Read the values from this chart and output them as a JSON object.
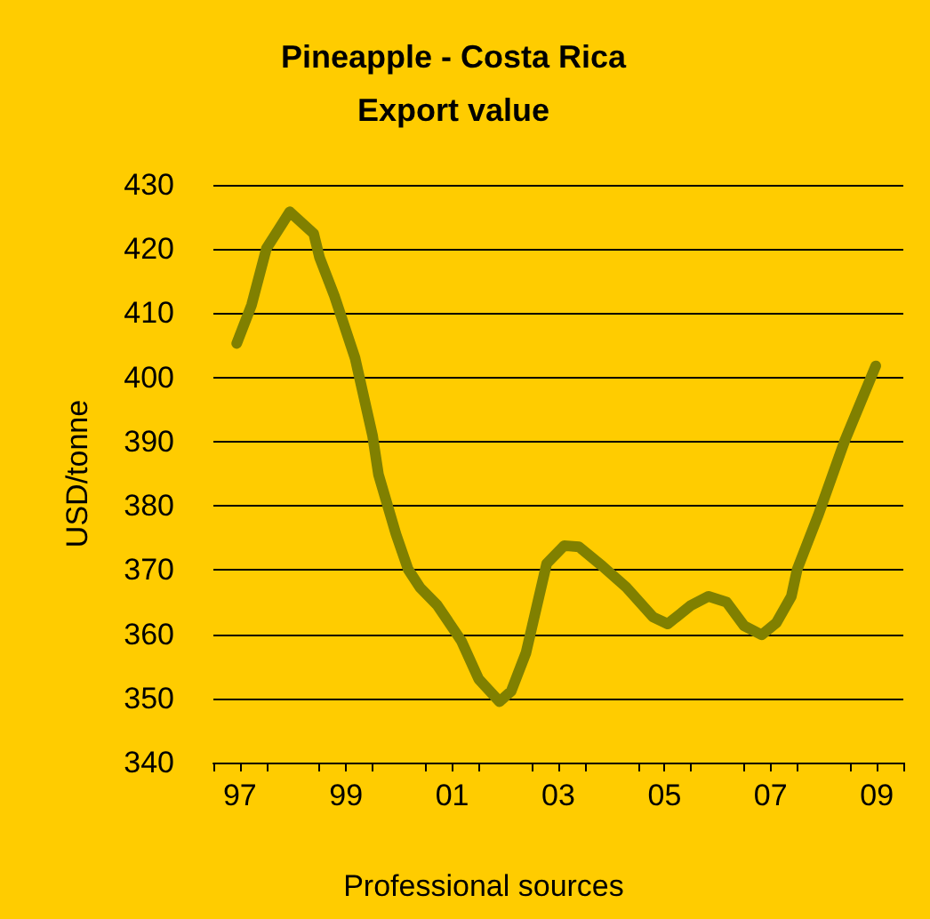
{
  "chart_data": {
    "type": "line",
    "title": "Pineapple - Costa Rica\nExport value",
    "ylabel": "USD/tonne",
    "annotations": [
      "Professional sources"
    ],
    "x": [
      1996.94,
      1997.22,
      1997.5,
      1997.94,
      1998.39,
      1998.5,
      1998.78,
      1999.17,
      1999.5,
      1999.61,
      1999.94,
      2000.17,
      2000.39,
      2000.72,
      2001.17,
      2001.5,
      2001.89,
      2002.11,
      2002.39,
      2002.78,
      2003.11,
      2003.39,
      2003.83,
      2004.28,
      2004.78,
      2005.06,
      2005.5,
      2005.83,
      2006.17,
      2006.5,
      2006.83,
      2007.11,
      2007.39,
      2007.5,
      2007.89,
      2008.39,
      2008.98
    ],
    "series": [
      {
        "color": "#808000",
        "values": [
          405.3,
          411.3,
          420.1,
          425.8,
          422.4,
          418.7,
          412.7,
          403,
          390.9,
          384.9,
          375.6,
          370.1,
          367.3,
          364.5,
          359,
          353,
          349.5,
          351.1,
          357.1,
          371,
          373.8,
          373.6,
          370.6,
          367.3,
          362.7,
          361.6,
          364.5,
          365.9,
          365,
          361.3,
          359.9,
          361.8,
          365.9,
          370.1,
          378.4,
          390,
          401.8
        ]
      }
    ],
    "xlim": [
      1996.5,
      2009.5
    ],
    "xticks": [
      {
        "value": 1996.5,
        "label": null
      },
      {
        "value": 1997,
        "label": "97"
      },
      {
        "value": 1997.5,
        "label": null
      },
      {
        "value": 1998.5,
        "label": null
      },
      {
        "value": 1999,
        "label": "99"
      },
      {
        "value": 1999.5,
        "label": null
      },
      {
        "value": 2000.5,
        "label": null
      },
      {
        "value": 2001,
        "label": "01"
      },
      {
        "value": 2001.5,
        "label": null
      },
      {
        "value": 2002.5,
        "label": null
      },
      {
        "value": 2003,
        "label": "03"
      },
      {
        "value": 2003.5,
        "label": null
      },
      {
        "value": 2004.5,
        "label": null
      },
      {
        "value": 2005,
        "label": "05"
      },
      {
        "value": 2005.5,
        "label": null
      },
      {
        "value": 2006.5,
        "label": null
      },
      {
        "value": 2007,
        "label": "07"
      },
      {
        "value": 2007.5,
        "label": null
      },
      {
        "value": 2008.5,
        "label": null
      },
      {
        "value": 2009,
        "label": "09"
      },
      {
        "value": 2009.5,
        "label": null
      }
    ],
    "ylim": [
      340,
      430
    ],
    "yticks": [
      340,
      350,
      360,
      370,
      380,
      390,
      400,
      410,
      420,
      430
    ],
    "grid": "y",
    "marker": "none",
    "line_style": "solid"
  }
}
